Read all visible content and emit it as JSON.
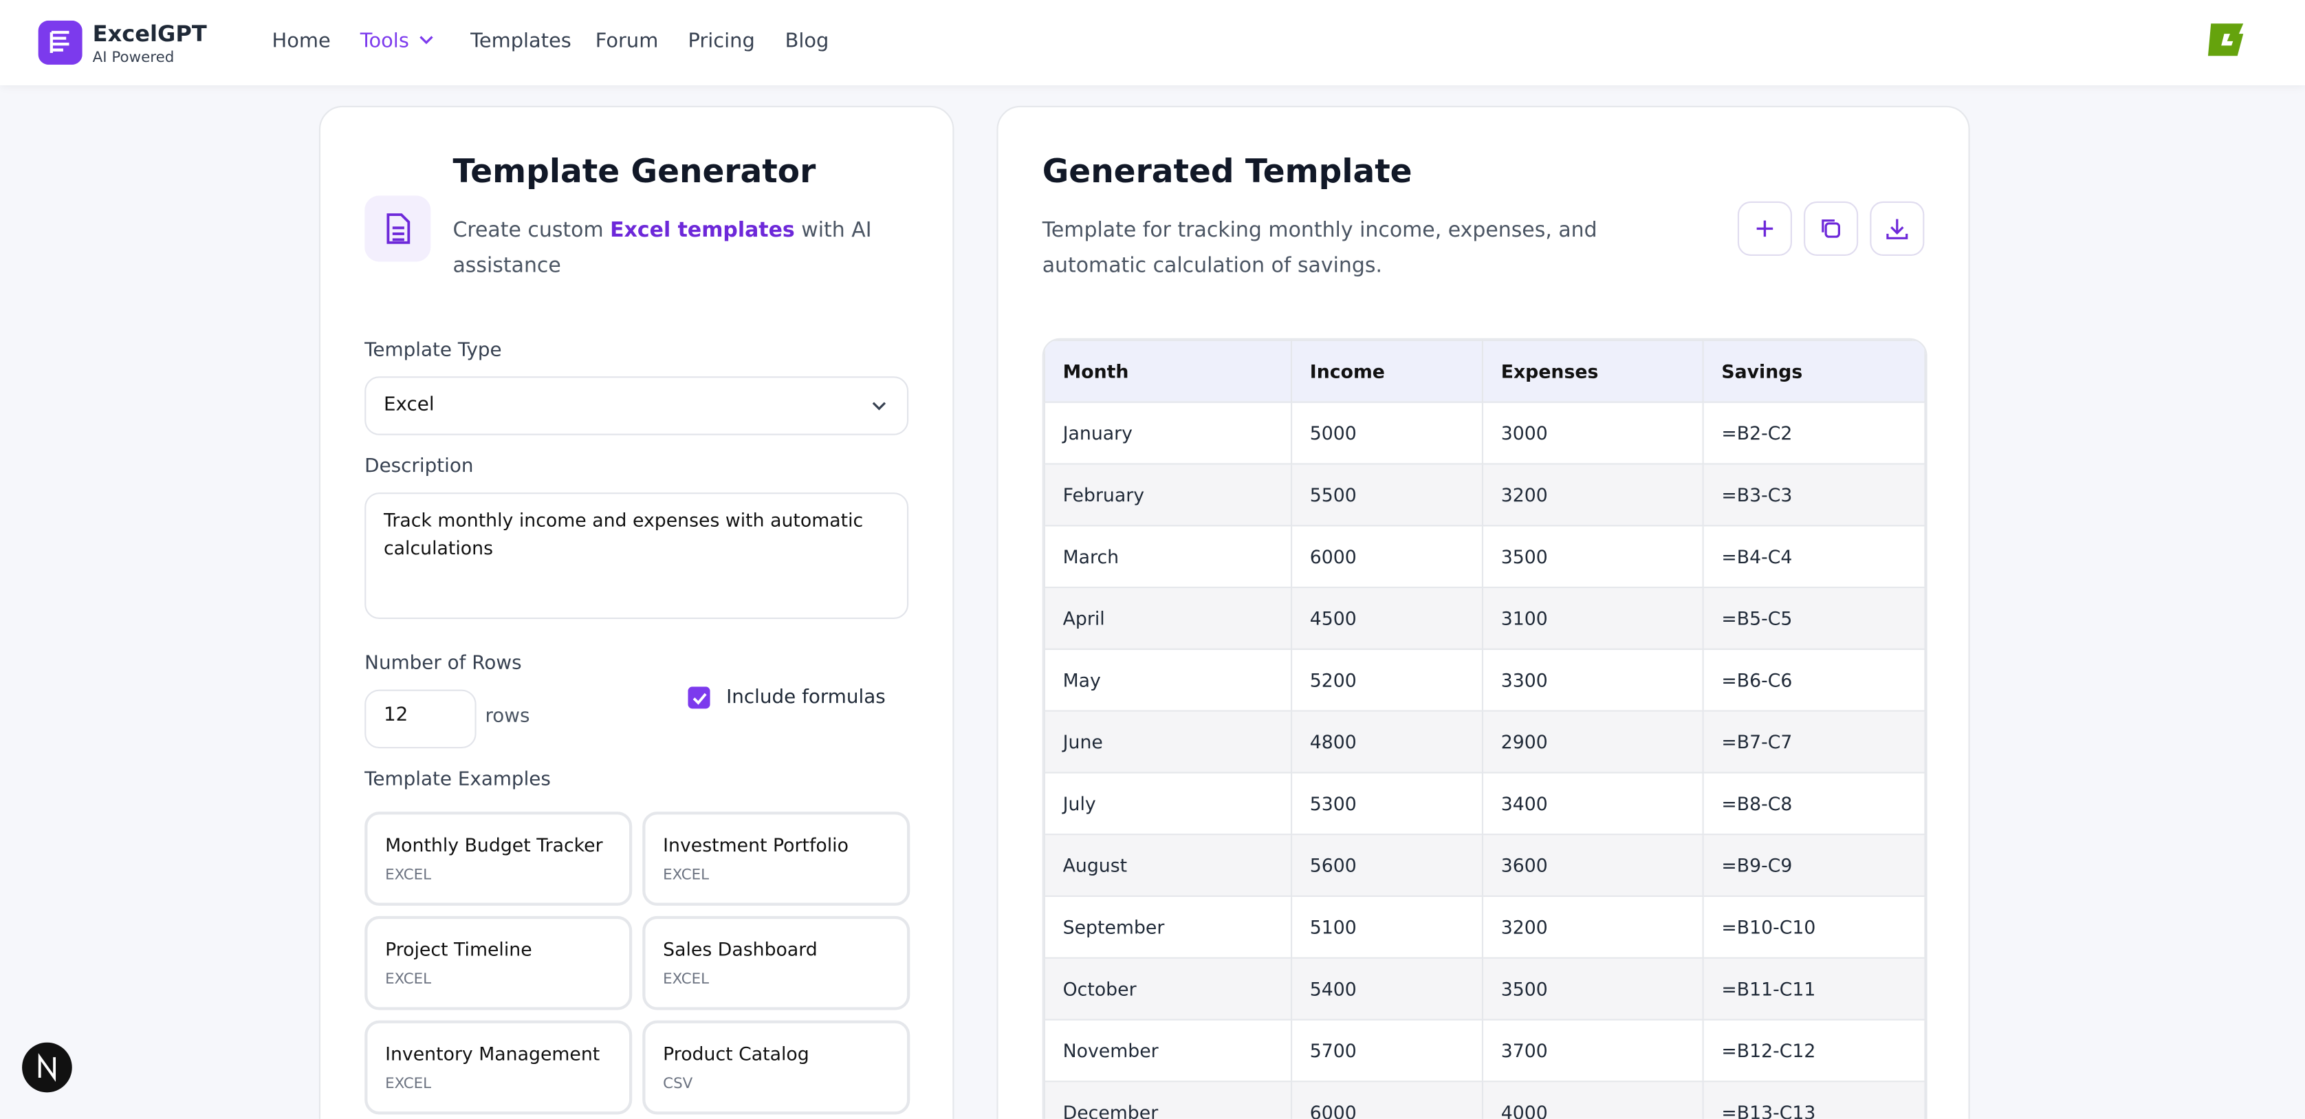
{
  "brand": {
    "name": "ExcelGPT",
    "tagline": "AI Powered"
  },
  "nav": [
    "Home",
    "Tools",
    "Templates",
    "Forum",
    "Pricing",
    "Blog"
  ],
  "generator": {
    "title": "Template Generator",
    "subtitle_prefix": "Create custom",
    "subtitle_highlight": "Excel templates",
    "subtitle_suffix": "with AI assistance",
    "template_type_label": "Template Type",
    "template_type_value": "Excel",
    "description_label": "Description",
    "description_value": "Track monthly income and expenses with automatic calculations",
    "rows_label": "Number of Rows",
    "rows_value": 12,
    "rows_unit": "rows",
    "formulas_label": "Include formulas",
    "examples_label": "Template Examples",
    "examples": [
      {
        "name": "Monthly Budget Tracker",
        "format": "EXCEL"
      },
      {
        "name": "Investment Portfolio",
        "format": "EXCEL"
      },
      {
        "name": "Project Timeline",
        "format": "EXCEL"
      },
      {
        "name": "Sales Dashboard",
        "format": "EXCEL"
      },
      {
        "name": "Inventory Management",
        "format": "EXCEL"
      },
      {
        "name": "Product Catalog",
        "format": "CSV"
      }
    ]
  },
  "result": {
    "title": "Generated Template",
    "description": "Template for tracking monthly income, expenses, and automatic calculation of savings.",
    "table": {
      "header": [
        "Month",
        "Income",
        "Expenses",
        "Savings"
      ],
      "rows": [
        [
          "January",
          5000,
          3000,
          "=B2-C2"
        ],
        [
          "February",
          5500,
          3200,
          "=B3-C3"
        ],
        [
          "March",
          6000,
          3500,
          "=B4-C4"
        ],
        [
          "April",
          4500,
          3100,
          "=B5-C5"
        ],
        [
          "May",
          5200,
          3300,
          "=B6-C6"
        ],
        [
          "June",
          4800,
          2900,
          "=B7-C7"
        ],
        [
          "July",
          5300,
          3400,
          "=B8-C8"
        ],
        [
          "August",
          5600,
          3600,
          "=B9-C9"
        ],
        [
          "September",
          5100,
          3200,
          "=B10-C10"
        ],
        [
          "October",
          5400,
          3500,
          "=B11-C11"
        ],
        [
          "November",
          5700,
          3700,
          "=B12-C12"
        ],
        [
          "December",
          6000,
          4000,
          "=B13-C13"
        ]
      ]
    }
  }
}
